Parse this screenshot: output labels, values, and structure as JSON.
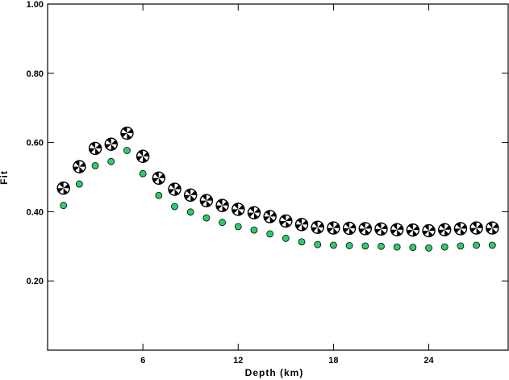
{
  "chart_data": {
    "type": "scatter",
    "title": "",
    "xlabel": "Depth (km)",
    "ylabel": "Fit",
    "xlim": [
      0,
      29
    ],
    "ylim": [
      0.0,
      1.0
    ],
    "xticks": [
      6,
      12,
      18,
      24
    ],
    "xtick_labels": [
      "6",
      "12",
      "18",
      "24"
    ],
    "yticks": [
      0.2,
      0.4,
      0.6,
      0.8,
      1.0
    ],
    "ytick_labels": [
      "0.20",
      "0.40",
      "0.60",
      "0.80",
      "1.00"
    ],
    "grid": false,
    "series": [
      {
        "marker": "focal-mechanism-beachball",
        "color": "#000000",
        "x": [
          1,
          2,
          3,
          4,
          5,
          6,
          7,
          8,
          9,
          10,
          11,
          12,
          13,
          14,
          15,
          16,
          17,
          18,
          19,
          20,
          21,
          22,
          23,
          24,
          25,
          26,
          27,
          28
        ],
        "y": [
          0.468,
          0.53,
          0.583,
          0.595,
          0.627,
          0.56,
          0.497,
          0.465,
          0.448,
          0.432,
          0.418,
          0.407,
          0.397,
          0.386,
          0.373,
          0.363,
          0.355,
          0.353,
          0.352,
          0.351,
          0.35,
          0.348,
          0.347,
          0.345,
          0.348,
          0.351,
          0.353,
          0.353
        ]
      },
      {
        "marker": "circle",
        "color": "#2ecc71",
        "x": [
          1,
          2,
          3,
          4,
          5,
          6,
          7,
          8,
          9,
          10,
          11,
          12,
          13,
          14,
          15,
          16,
          17,
          18,
          19,
          20,
          21,
          22,
          23,
          24,
          25,
          26,
          27,
          28
        ],
        "y": [
          0.418,
          0.48,
          0.533,
          0.545,
          0.577,
          0.51,
          0.447,
          0.415,
          0.399,
          0.382,
          0.369,
          0.357,
          0.347,
          0.336,
          0.323,
          0.313,
          0.305,
          0.303,
          0.302,
          0.301,
          0.3,
          0.298,
          0.297,
          0.295,
          0.298,
          0.301,
          0.303,
          0.303
        ]
      }
    ]
  }
}
